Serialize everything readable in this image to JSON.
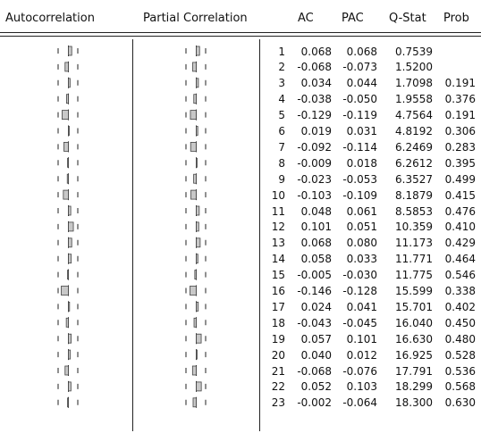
{
  "headers": {
    "autocorrelation": "Autocorrelation",
    "partial_correlation": "Partial Correlation",
    "ac": "AC",
    "pac": "PAC",
    "qstat": "Q-Stat",
    "prob": "Prob"
  },
  "rows": [
    {
      "lag": "1",
      "ac": "0.068",
      "pac": "0.068",
      "q": "0.7539",
      "prob": ""
    },
    {
      "lag": "2",
      "ac": "-0.068",
      "pac": "-0.073",
      "q": "1.5200",
      "prob": ""
    },
    {
      "lag": "3",
      "ac": "0.034",
      "pac": "0.044",
      "q": "1.7098",
      "prob": "0.191"
    },
    {
      "lag": "4",
      "ac": "-0.038",
      "pac": "-0.050",
      "q": "1.9558",
      "prob": "0.376"
    },
    {
      "lag": "5",
      "ac": "-0.129",
      "pac": "-0.119",
      "q": "4.7564",
      "prob": "0.191"
    },
    {
      "lag": "6",
      "ac": "0.019",
      "pac": "0.031",
      "q": "4.8192",
      "prob": "0.306"
    },
    {
      "lag": "7",
      "ac": "-0.092",
      "pac": "-0.114",
      "q": "6.2469",
      "prob": "0.283"
    },
    {
      "lag": "8",
      "ac": "-0.009",
      "pac": "0.018",
      "q": "6.2612",
      "prob": "0.395"
    },
    {
      "lag": "9",
      "ac": "-0.023",
      "pac": "-0.053",
      "q": "6.3527",
      "prob": "0.499"
    },
    {
      "lag": "10",
      "ac": "-0.103",
      "pac": "-0.109",
      "q": "8.1879",
      "prob": "0.415"
    },
    {
      "lag": "11",
      "ac": "0.048",
      "pac": "0.061",
      "q": "8.5853",
      "prob": "0.476"
    },
    {
      "lag": "12",
      "ac": "0.101",
      "pac": "0.051",
      "q": "10.359",
      "prob": "0.410"
    },
    {
      "lag": "13",
      "ac": "0.068",
      "pac": "0.080",
      "q": "11.173",
      "prob": "0.429"
    },
    {
      "lag": "14",
      "ac": "0.058",
      "pac": "0.033",
      "q": "11.771",
      "prob": "0.464"
    },
    {
      "lag": "15",
      "ac": "-0.005",
      "pac": "-0.030",
      "q": "11.775",
      "prob": "0.546"
    },
    {
      "lag": "16",
      "ac": "-0.146",
      "pac": "-0.128",
      "q": "15.599",
      "prob": "0.338"
    },
    {
      "lag": "17",
      "ac": "0.024",
      "pac": "0.041",
      "q": "15.701",
      "prob": "0.402"
    },
    {
      "lag": "18",
      "ac": "-0.043",
      "pac": "-0.045",
      "q": "16.040",
      "prob": "0.450"
    },
    {
      "lag": "19",
      "ac": "0.057",
      "pac": "0.101",
      "q": "16.630",
      "prob": "0.480"
    },
    {
      "lag": "20",
      "ac": "0.040",
      "pac": "0.012",
      "q": "16.925",
      "prob": "0.528"
    },
    {
      "lag": "21",
      "ac": "-0.068",
      "pac": "-0.076",
      "q": "17.791",
      "prob": "0.536"
    },
    {
      "lag": "22",
      "ac": "0.052",
      "pac": "0.103",
      "q": "18.299",
      "prob": "0.568"
    },
    {
      "lag": "23",
      "ac": "-0.002",
      "pac": "-0.064",
      "q": "18.300",
      "prob": "0.630"
    }
  ],
  "colors": {
    "bar_fill": "#c8c8c8",
    "bar_stroke": "#444444",
    "line": "#222222"
  }
}
